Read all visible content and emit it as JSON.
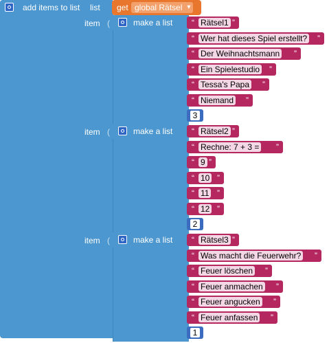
{
  "block": {
    "title": "add items to list",
    "list_label": "list",
    "get_label": "get",
    "variable": "global Rätsel",
    "item_label": "item",
    "make_list_label": "make a list"
  },
  "items": [
    {
      "texts": [
        "Rätsel1",
        "Wer hat dieses Spiel erstellt?",
        "Der Weihnachtsmann",
        "Ein Spielestudio",
        "Tessa's Papa",
        "Niemand"
      ],
      "number": "3"
    },
    {
      "texts": [
        "Rätsel2",
        "Rechne: 7 + 3 =",
        "9",
        "10",
        "11",
        "12"
      ],
      "number": "2"
    },
    {
      "texts": [
        "Rätsel3",
        "Was macht die Feuerwehr?",
        "Feuer löschen",
        "Feuer anmachen",
        "Feuer angucken",
        "Feuer anfassen"
      ],
      "number": "1"
    }
  ],
  "colors": {
    "list_block": "#4c97cf",
    "text_block": "#b5275f",
    "number_block": "#3b6cc0",
    "get_block": "#e9762d"
  }
}
